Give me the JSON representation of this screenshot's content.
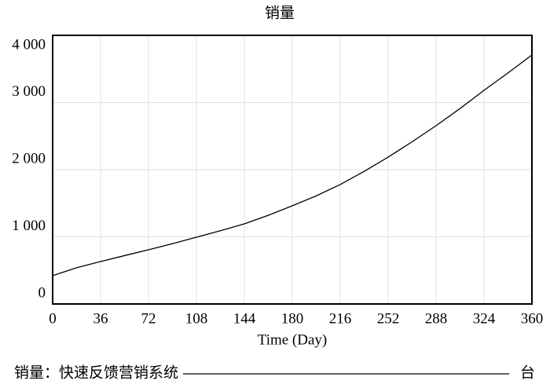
{
  "chart_data": {
    "type": "line",
    "title": "销量",
    "x_label": "Time (Day)",
    "x": [
      0,
      18,
      36,
      54,
      72,
      90,
      108,
      126,
      144,
      162,
      180,
      198,
      216,
      234,
      252,
      270,
      288,
      306,
      324,
      342,
      360
    ],
    "series": [
      {
        "name": "销量：快速反馈营销系统",
        "unit": "台",
        "color": "#000000",
        "values": [
          421,
          540,
          632,
          720,
          807,
          898,
          994,
          1090,
          1193,
          1320,
          1462,
          1610,
          1778,
          1975,
          2187,
          2415,
          2655,
          2910,
          3181,
          3440,
          3708
        ]
      }
    ],
    "xlim": [
      0,
      360
    ],
    "xticks": [
      0,
      36,
      72,
      108,
      144,
      180,
      216,
      252,
      288,
      324,
      360
    ],
    "ylim": [
      0,
      4000
    ],
    "yticks": [
      0,
      {
        "value": 1000,
        "label": "1 000"
      },
      {
        "value": 2000,
        "label": "2 000"
      },
      {
        "value": 3000,
        "label": "3 000"
      },
      {
        "value": 4000,
        "label": "4 000"
      }
    ],
    "grid": true
  }
}
